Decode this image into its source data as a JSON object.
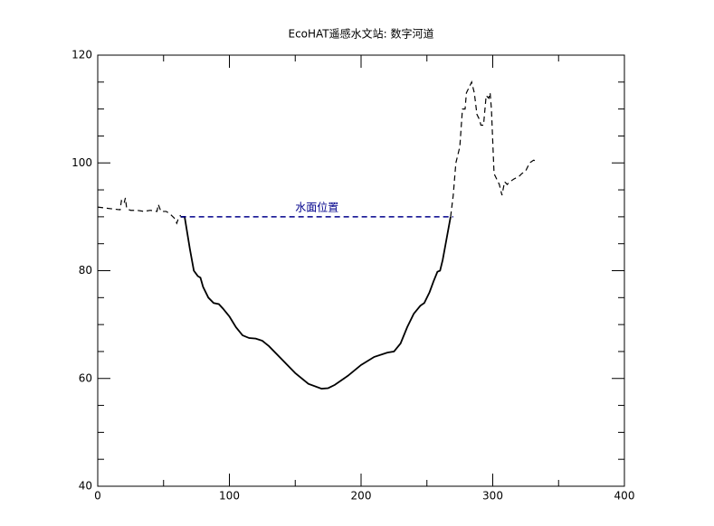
{
  "chart_data": {
    "type": "line",
    "title": "EcoHAT遥感水文站: 数字河道",
    "xlim": [
      0,
      400
    ],
    "xticks": [
      0,
      100,
      200,
      300,
      400
    ],
    "xminorticks": [
      50,
      150,
      250,
      350
    ],
    "ylim": [
      40,
      120
    ],
    "yticks": [
      40,
      60,
      80,
      100,
      120
    ],
    "yminorticks": [
      45,
      50,
      55,
      65,
      70,
      75,
      85,
      90,
      95,
      105,
      110,
      115
    ],
    "series": [
      {
        "color": "#000000",
        "dash": true,
        "x": [
          0,
          10,
          17,
          18,
          20,
          21,
          22,
          25,
          30,
          35,
          40,
          45,
          46,
          48,
          52,
          55,
          58,
          60,
          61,
          62,
          63
        ],
        "values": [
          91.8,
          91.5,
          91.3,
          93,
          92.5,
          93.5,
          91.5,
          91.2,
          91.2,
          91,
          91.2,
          91,
          92.3,
          91,
          91,
          90.5,
          89.8,
          88.8,
          89.5,
          90,
          90.3
        ]
      },
      {
        "color": "#000000",
        "dash": false,
        "x": [
          63,
          66,
          70,
          73,
          76,
          78,
          80,
          84,
          88,
          92,
          95,
          100,
          105,
          110,
          115,
          120,
          125,
          130,
          140,
          150,
          160,
          170,
          175,
          180,
          190,
          200,
          210,
          220,
          225,
          230,
          235,
          240,
          245,
          248,
          252,
          255,
          258,
          260,
          262,
          265,
          268
        ],
        "values": [
          90,
          90,
          84,
          80,
          79,
          78.7,
          77,
          75,
          74,
          73.8,
          73,
          71.5,
          69.5,
          68,
          67.5,
          67.4,
          67,
          66,
          63.5,
          61,
          59,
          58.1,
          58.2,
          58.8,
          60.5,
          62.5,
          64,
          64.8,
          65,
          66.5,
          69.5,
          72,
          73.5,
          74,
          76,
          78,
          79.8,
          80,
          82,
          86,
          90
        ]
      },
      {
        "color": "#000000",
        "dash": true,
        "x": [
          268,
          270,
          272,
          275,
          277,
          279,
          280,
          283,
          284,
          286,
          288,
          290,
          291,
          293,
          295,
          297,
          298,
          299,
          301,
          303,
          305,
          307,
          309,
          311,
          313,
          316,
          320,
          322,
          325,
          328,
          331,
          334
        ],
        "values": [
          90,
          94,
          100,
          103,
          110,
          110,
          113,
          114.5,
          115,
          113,
          109,
          108,
          107,
          107,
          112.5,
          112,
          113,
          110,
          98,
          97,
          96,
          94,
          96.5,
          96,
          96.5,
          97,
          97.5,
          98,
          98.5,
          100,
          100.5,
          100.3
        ]
      }
    ],
    "annotations": [
      {
        "text": "水面位置",
        "x": [
          63,
          270
        ],
        "y": [
          90,
          90
        ],
        "color": "#00008b"
      }
    ]
  }
}
